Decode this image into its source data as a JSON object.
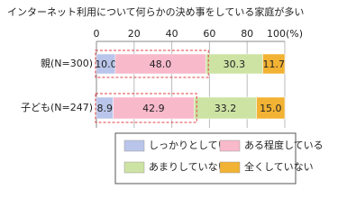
{
  "chart_data": {
    "type": "stacked-bar-horizontal",
    "title": "インターネット利用について何らかの決め事をしている家庭が多い",
    "categories": [
      "親(N=300)",
      "子ども(N=247)"
    ],
    "series": [
      {
        "name": "しっかりとしている",
        "color": "#b9c5ea",
        "values": [
          10.0,
          8.9
        ],
        "value_labels": [
          "10.0",
          "8.9"
        ]
      },
      {
        "name": "ある程度している",
        "color": "#f8b9cb",
        "values": [
          48.0,
          42.9
        ],
        "value_labels": [
          "48.0",
          "42.9"
        ]
      },
      {
        "name": "あまりしていない",
        "color": "#cde3a3",
        "values": [
          30.3,
          33.2
        ],
        "value_labels": [
          "30.3",
          "33.2"
        ]
      },
      {
        "name": "全くしていない",
        "color": "#f2b233",
        "values": [
          11.7,
          15.0
        ],
        "value_labels": [
          "11.7",
          "15.0"
        ]
      }
    ],
    "xlim": [
      0,
      100
    ],
    "xticks": [
      0,
      20,
      40,
      60,
      80,
      {
        "value": 100,
        "label": "100(%)"
      }
    ],
    "grid": true
  }
}
